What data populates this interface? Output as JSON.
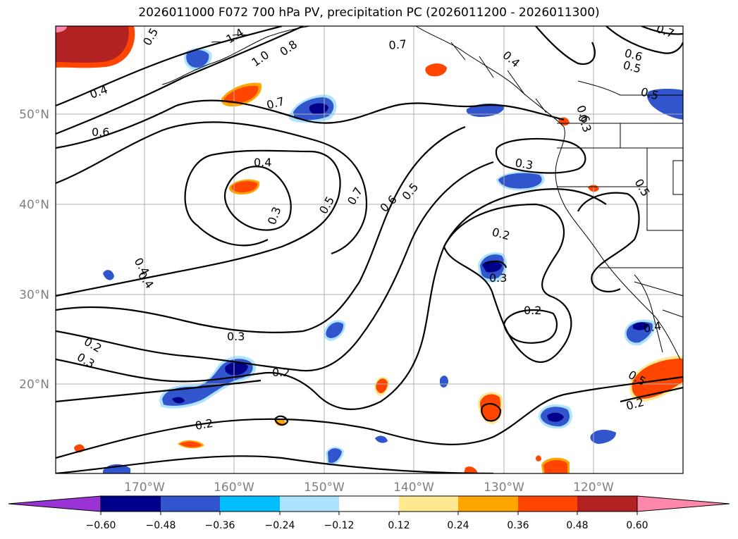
{
  "title": "2026011000 F072 700 hPa PV, precipitation PC (2026011200 - 2026011300)",
  "map": {
    "lat_labels": [
      "50°N",
      "40°N",
      "30°N",
      "20°N"
    ],
    "lon_labels": [
      "170°W",
      "160°W",
      "150°W",
      "140°W",
      "130°W",
      "120°W"
    ],
    "contour_labels": [
      "0.5",
      "1.4",
      "1.0",
      "0.8",
      "0.4",
      "0.6",
      "0.7",
      "0.7",
      "0.4",
      "0.6",
      "0.5",
      "0.7",
      "0.4",
      "0.3",
      "0.3",
      "0.5",
      "0.7",
      "0.6",
      "0.5",
      "0.6",
      "0.3",
      "0.2",
      "0.3",
      "0.2",
      "0.4",
      "0.4",
      "0.2",
      "0.3",
      "0.3",
      "0.2",
      "0.2",
      "0.5",
      "0.2",
      "0.4",
      "0.5",
      "0.5"
    ],
    "colors": {
      "c_n060": "#9933d6",
      "c_n048": "#00008b",
      "c_n036": "#3155cc",
      "c_n024": "#00bfff",
      "c_n012": "#aee3ff",
      "c_zero": "#ffffff",
      "c_p012": "#ffe88f",
      "c_p024": "#ffa500",
      "c_p036": "#ff4500",
      "c_p048": "#b22222",
      "c_p060": "#ff88aa"
    }
  },
  "colorbar": {
    "ticks": [
      "−0.60",
      "−0.48",
      "−0.36",
      "−0.24",
      "−0.12",
      "0.12",
      "0.24",
      "0.36",
      "0.48",
      "0.60"
    ],
    "colors": [
      "#9933d6",
      "#00008b",
      "#3155cc",
      "#00bfff",
      "#aee3ff",
      "#ffffff",
      "#ffe88f",
      "#ffa500",
      "#ff4500",
      "#b22222",
      "#ff88aa"
    ]
  }
}
